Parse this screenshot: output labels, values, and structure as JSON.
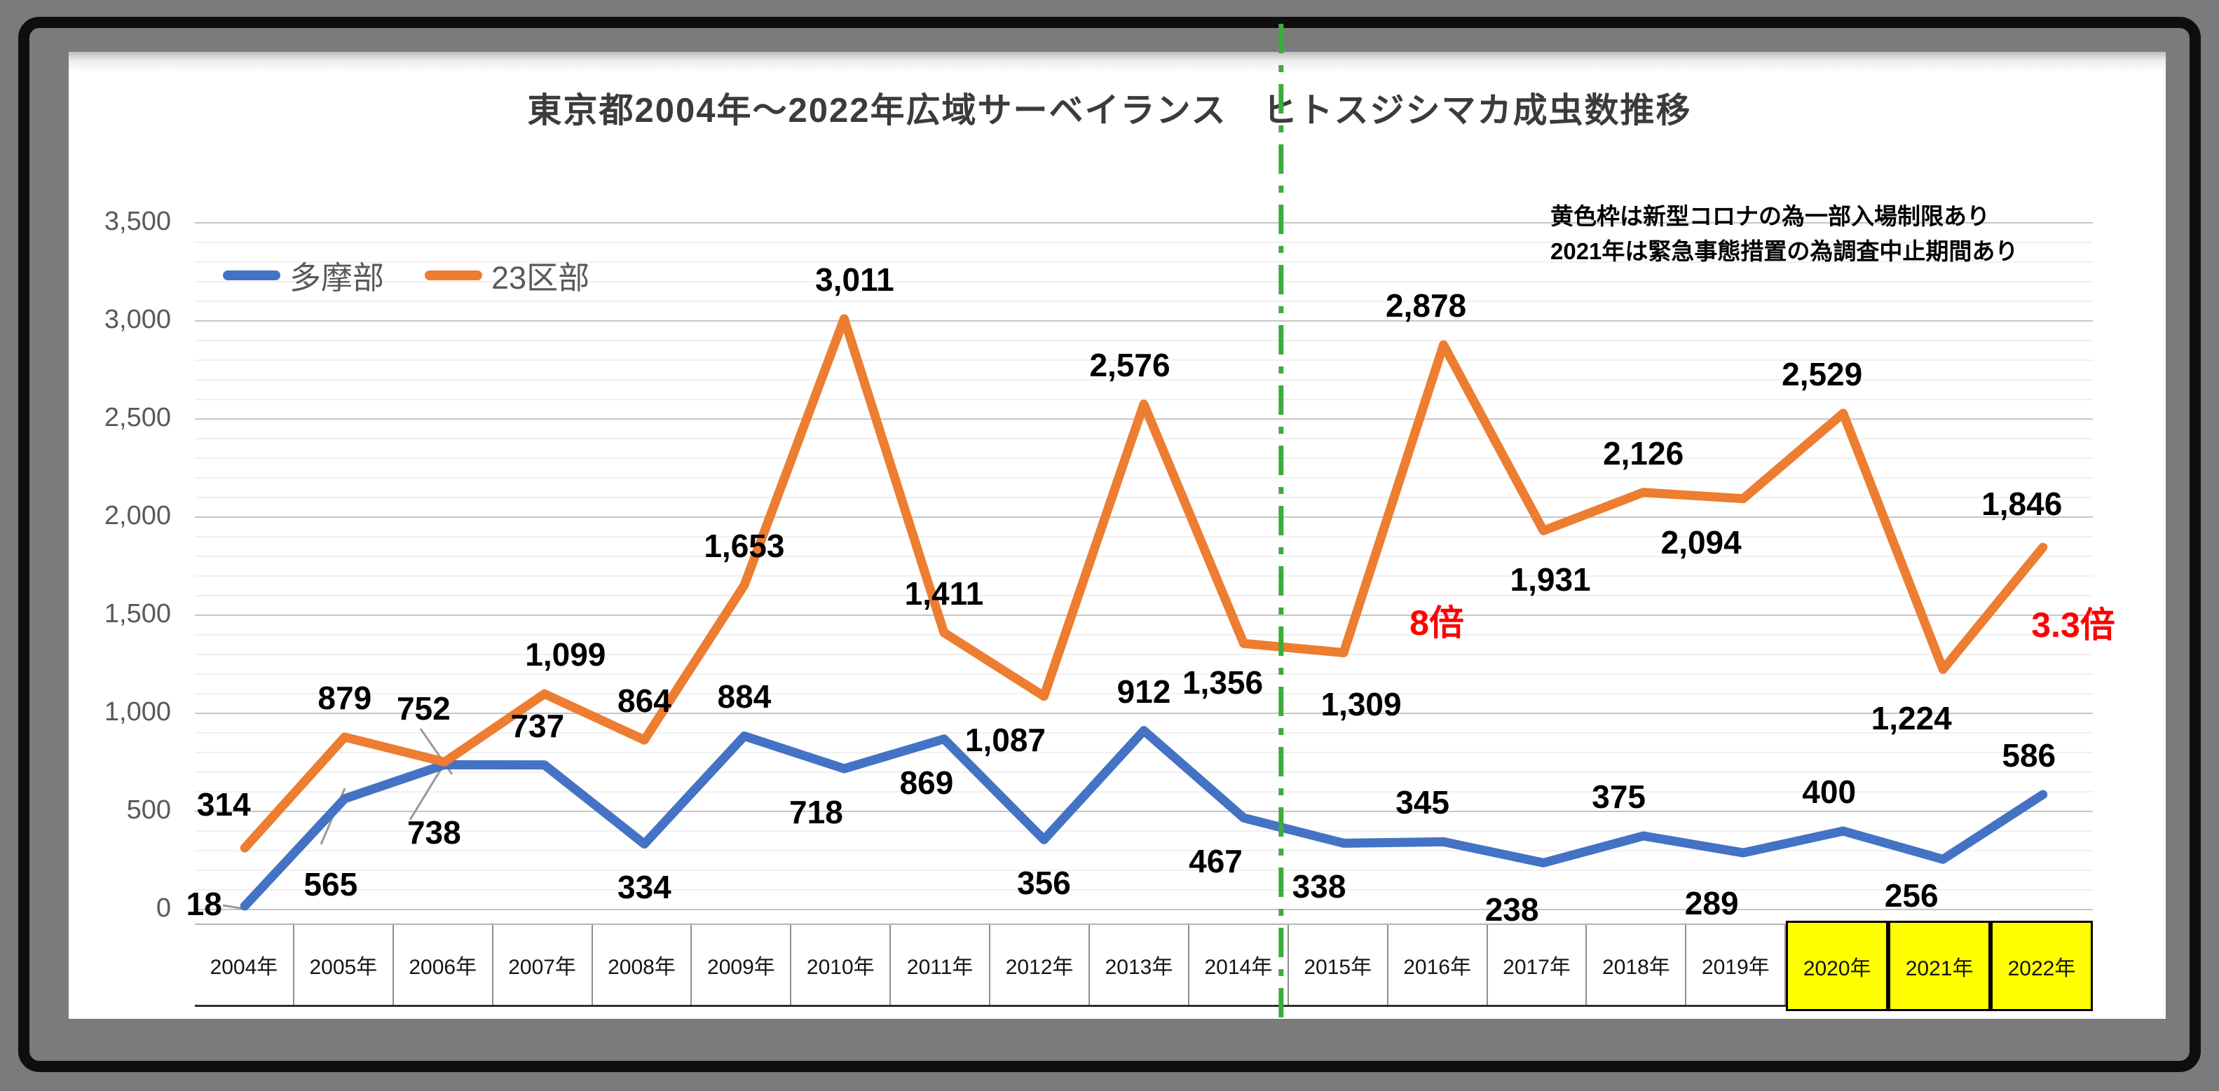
{
  "annotation": {
    "line1": "黄色枠は新型コロナの為一部入場制限あり",
    "line2": "2021年は緊急事態措置の為調査中止期間あり"
  },
  "callouts": [
    {
      "text": "8倍"
    },
    {
      "text": "3.3倍"
    }
  ],
  "chart_data": {
    "type": "line",
    "title": "東京都2004年～2022年広域サーベイランス　ヒトスジシマカ成虫数推移",
    "categories": [
      "2004年",
      "2005年",
      "2006年",
      "2007年",
      "2008年",
      "2009年",
      "2010年",
      "2011年",
      "2012年",
      "2013年",
      "2014年",
      "2015年",
      "2016年",
      "2017年",
      "2018年",
      "2019年",
      "2020年",
      "2021年",
      "2022年"
    ],
    "series": [
      {
        "name": "多摩部",
        "color": "#4472C4",
        "values": [
          18,
          565,
          738,
          737,
          334,
          884,
          718,
          869,
          356,
          912,
          467,
          338,
          345,
          238,
          375,
          289,
          400,
          256,
          586
        ],
        "label_side": [
          "left",
          "below",
          "below",
          "above",
          "below",
          "above",
          "below",
          "below",
          "below",
          "above",
          "below",
          "below",
          "above",
          "below",
          "above",
          "below",
          "above",
          "below",
          "above"
        ]
      },
      {
        "name": "23区部",
        "color": "#ED7D31",
        "values": [
          314,
          879,
          752,
          1099,
          864,
          1653,
          3011,
          1411,
          1087,
          2576,
          1356,
          1309,
          2878,
          1931,
          2126,
          2094,
          2529,
          1224,
          1846
        ],
        "label_side": [
          "above",
          "above",
          "above",
          "above",
          "above",
          "above",
          "above",
          "above",
          "below",
          "above",
          "below",
          "below",
          "above",
          "below",
          "above",
          "below",
          "above",
          "below",
          "above"
        ]
      }
    ],
    "ylabel": "",
    "xlabel": "",
    "ylim": [
      0,
      3500
    ],
    "ytick_step": 500,
    "yminor_step": 100,
    "grid": true,
    "legend_position": "top-left",
    "highlighted_categories": [
      "2020年",
      "2021年",
      "2022年"
    ],
    "divider_after_category": "2014年",
    "divider_color": "#3CAC3C",
    "highlight_color": "#FFFF00",
    "callout_color": "#FF0000"
  }
}
